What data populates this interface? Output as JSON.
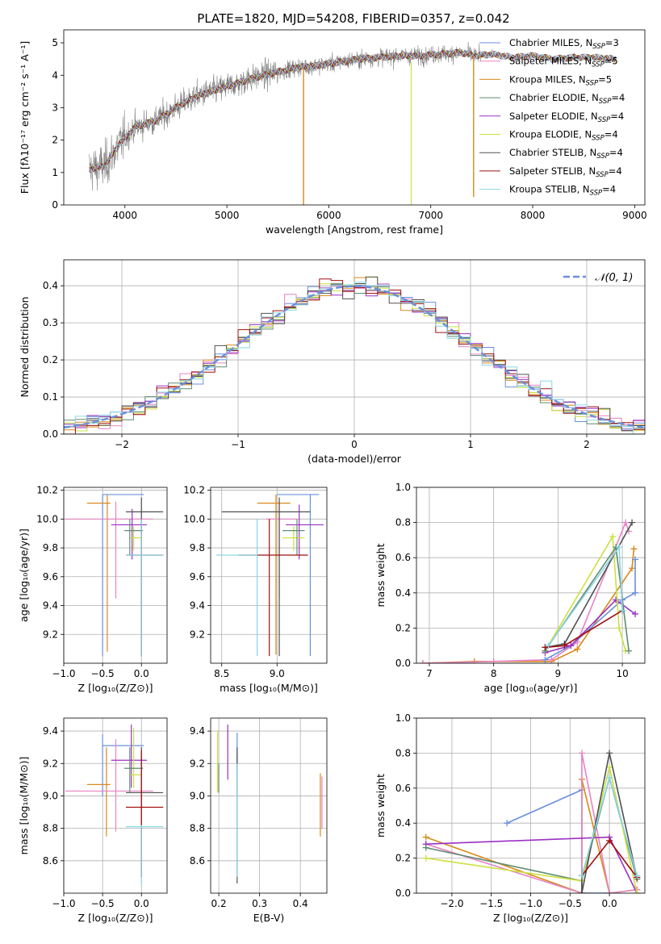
{
  "title": "PLATE=1820, MJD=54208, FIBERID=0357, z=0.042",
  "colors": {
    "Chabrier MILES": "#6a8fdc",
    "Salpeter MILES": "#e783c3",
    "Kroupa MILES": "#d88a1c",
    "Chabrier ELODIE": "#5e8c72",
    "Salpeter ELODIE": "#9a30c4",
    "Kroupa ELODIE": "#cde040",
    "Chabrier STELIB": "#505050",
    "Salpeter STELIB": "#a01010",
    "Kroupa STELIB": "#8ad6e6",
    "data": "#808080",
    "normal": "#6a8fdc"
  },
  "chart_data": [
    {
      "id": "spectrum",
      "type": "line",
      "xlabel": "wavelength [Angstrom, rest frame]",
      "ylabel": "Flux [fλ10⁻¹⁷ erg cm⁻² s⁻¹ A⁻¹]",
      "xlim": [
        3400,
        9100
      ],
      "ylim": [
        0,
        5.4
      ],
      "xticks": [
        4000,
        5000,
        6000,
        7000,
        8000,
        9000
      ],
      "yticks": [
        0,
        1,
        2,
        3,
        4,
        5
      ],
      "legend": "top-right",
      "legend_entries": [
        {
          "name": "Chabrier MILES",
          "nssp": "3"
        },
        {
          "name": "Salpeter MILES",
          "nssp": "5"
        },
        {
          "name": "Kroupa MILES",
          "nssp": "5"
        },
        {
          "name": "Chabrier ELODIE",
          "nssp": "4"
        },
        {
          "name": "Salpeter ELODIE",
          "nssp": "4"
        },
        {
          "name": "Kroupa ELODIE",
          "nssp": "4"
        },
        {
          "name": "Chabrier STELIB",
          "nssp": "4"
        },
        {
          "name": "Salpeter STELIB",
          "nssp": "4"
        },
        {
          "name": "Kroupa STELIB",
          "nssp": "4"
        }
      ],
      "continuum": [
        [
          3650,
          1.1
        ],
        [
          3800,
          1.2
        ],
        [
          3950,
          1.9
        ],
        [
          4100,
          2.4
        ],
        [
          4300,
          2.6
        ],
        [
          4500,
          3.0
        ],
        [
          4700,
          3.35
        ],
        [
          4900,
          3.55
        ],
        [
          5100,
          3.75
        ],
        [
          5300,
          3.95
        ],
        [
          5500,
          4.1
        ],
        [
          5700,
          4.25
        ],
        [
          5900,
          4.3
        ],
        [
          6100,
          4.4
        ],
        [
          6300,
          4.5
        ],
        [
          6500,
          4.55
        ],
        [
          6700,
          4.6
        ],
        [
          6900,
          4.6
        ],
        [
          7100,
          4.65
        ],
        [
          7300,
          4.7
        ],
        [
          7420,
          4.6
        ],
        [
          7600,
          4.65
        ],
        [
          7800,
          4.55
        ],
        [
          8000,
          4.6
        ],
        [
          8200,
          4.5
        ],
        [
          8400,
          4.55
        ],
        [
          8600,
          4.55
        ],
        [
          8820,
          4.5
        ]
      ]
    },
    {
      "id": "residuals",
      "type": "histogram",
      "xlabel": "(data-model)/error",
      "ylabel": "Normed distribution",
      "xlim": [
        -2.5,
        2.5
      ],
      "ylim": [
        0,
        0.47
      ],
      "xticks": [
        -2,
        -1,
        0,
        1,
        2
      ],
      "yticks": [
        0.0,
        0.1,
        0.2,
        0.3,
        0.4
      ],
      "grid": true,
      "legend": "top-right",
      "legend_label": "𝒩(0, 1)",
      "bin_width": 0.1
    },
    {
      "id": "age-vs-Z",
      "type": "errorbar",
      "xlabel": "Z [log₁₀(Z/Z⊙)]",
      "ylabel": "age  [log₁₀(age/yr)]",
      "xlim": [
        -1.0,
        0.33
      ],
      "ylim": [
        9.0,
        10.22
      ],
      "xticks": [
        -1.0,
        -0.5,
        0.0
      ],
      "yticks": [
        9.2,
        9.4,
        9.6,
        9.8,
        10.0,
        10.2
      ],
      "grid": true,
      "points": [
        {
          "s": "Chabrier MILES",
          "x": -0.5,
          "xe": [
            -0.5,
            0.03
          ],
          "y": 10.17,
          "ye": [
            9.05,
            10.17
          ]
        },
        {
          "s": "Kroupa MILES",
          "x": -0.44,
          "xe": [
            -0.7,
            -0.4
          ],
          "y": 10.11,
          "ye": [
            9.08,
            10.17
          ]
        },
        {
          "s": "Salpeter MILES",
          "x": -0.33,
          "xe": [
            -0.98,
            0.15
          ],
          "y": 10.0,
          "ye": [
            9.45,
            10.12
          ]
        },
        {
          "s": "Salpeter ELODIE",
          "x": -0.12,
          "xe": [
            -0.39,
            0.07
          ],
          "y": 9.96,
          "ye": [
            9.72,
            10.07
          ]
        },
        {
          "s": "Kroupa ELODIE",
          "x": -0.1,
          "xe": [
            -0.15,
            0.0
          ],
          "y": 9.87,
          "ye": [
            9.78,
            9.95
          ]
        },
        {
          "s": "Chabrier ELODIE",
          "x": -0.15,
          "xe": [
            -0.22,
            0.02
          ],
          "y": 9.92,
          "ye": [
            9.75,
            10.0
          ]
        },
        {
          "s": "Chabrier STELIB",
          "x": 0.0,
          "xe": [
            -0.2,
            0.28
          ],
          "y": 10.05,
          "ye": [
            9.05,
            10.15
          ]
        },
        {
          "s": "Salpeter STELIB",
          "x": 0.0,
          "xe": [
            -0.2,
            0.28
          ],
          "y": 9.75,
          "ye": [
            9.05,
            10.0
          ]
        },
        {
          "s": "Kroupa STELIB",
          "x": 0.0,
          "xe": [
            -0.2,
            0.28
          ],
          "y": 9.75,
          "ye": [
            9.05,
            10.0
          ]
        }
      ]
    },
    {
      "id": "age-vs-mass",
      "type": "errorbar",
      "xlabel": "mass [log₁₀(M/M⊙)]",
      "xlim": [
        8.4,
        9.45
      ],
      "ylim": [
        9.0,
        10.22
      ],
      "xticks": [
        8.5,
        9.0
      ],
      "yticks": [
        9.2,
        9.4,
        9.6,
        9.8,
        10.0,
        10.2
      ],
      "grid": true,
      "points": [
        {
          "s": "Chabrier MILES",
          "x": 9.3,
          "xe": [
            9.0,
            9.38
          ],
          "y": 10.17,
          "ye": [
            9.05,
            10.17
          ]
        },
        {
          "s": "Kroupa MILES",
          "x": 8.99,
          "xe": [
            8.82,
            9.12
          ],
          "y": 10.11,
          "ye": [
            9.06,
            10.17
          ]
        },
        {
          "s": "Salpeter MILES",
          "x": 9.02,
          "xe": [
            8.9,
            9.18
          ],
          "y": 10.0,
          "ye": [
            9.45,
            10.12
          ]
        },
        {
          "s": "Salpeter ELODIE",
          "x": 9.2,
          "xe": [
            9.08,
            9.42
          ],
          "y": 9.96,
          "ye": [
            9.72,
            10.1
          ]
        },
        {
          "s": "Kroupa ELODIE",
          "x": 9.15,
          "xe": [
            9.05,
            9.25
          ],
          "y": 9.87,
          "ye": [
            9.78,
            9.95
          ]
        },
        {
          "s": "Chabrier ELODIE",
          "x": 9.18,
          "xe": [
            9.05,
            9.25
          ],
          "y": 9.92,
          "ye": [
            9.75,
            10.0
          ]
        },
        {
          "s": "Chabrier STELIB",
          "x": 9.02,
          "xe": [
            8.5,
            9.3
          ],
          "y": 10.05,
          "ye": [
            9.05,
            10.15
          ]
        },
        {
          "s": "Salpeter STELIB",
          "x": 8.93,
          "xe": [
            8.65,
            9.28
          ],
          "y": 9.75,
          "ye": [
            9.05,
            10.0
          ]
        },
        {
          "s": "Kroupa STELIB",
          "x": 8.82,
          "xe": [
            8.45,
            8.82
          ],
          "y": 9.75,
          "ye": [
            9.05,
            10.0
          ]
        }
      ]
    },
    {
      "id": "mw-vs-age",
      "type": "line",
      "xlabel": "age  [log₁₀(age/yr)]",
      "ylabel": "mass weight",
      "xlim": [
        6.8,
        10.35
      ],
      "ylim": [
        0,
        1.0
      ],
      "xticks": [
        7,
        8,
        9,
        10
      ],
      "yticks": [
        0.0,
        0.2,
        0.4,
        0.6,
        0.8,
        1.0
      ],
      "grid": true,
      "series": [
        {
          "s": "Kroupa MILES",
          "x": [
            6.9,
            7.7,
            8.0,
            8.9,
            9.3,
            10.15,
            10.18
          ],
          "y": [
            0.0,
            0.01,
            0.01,
            0.01,
            0.08,
            0.54,
            0.65
          ]
        },
        {
          "s": "Salpeter MILES",
          "x": [
            6.9,
            8.0,
            8.9,
            9.3,
            10.05,
            10.1
          ],
          "y": [
            0.0,
            0.01,
            0.02,
            0.12,
            0.8,
            0.75
          ]
        },
        {
          "s": "Chabrier MILES",
          "x": [
            8.8,
            9.2,
            10.0,
            10.2,
            10.2
          ],
          "y": [
            0.02,
            0.1,
            0.36,
            0.4,
            0.59
          ]
        },
        {
          "s": "Salpeter ELODIE",
          "x": [
            8.8,
            9.2,
            9.9,
            10.2
          ],
          "y": [
            0.06,
            0.1,
            0.36,
            0.28
          ]
        },
        {
          "s": "Kroupa ELODIE",
          "x": [
            8.8,
            9.85,
            9.95,
            10.05
          ],
          "y": [
            0.07,
            0.72,
            0.2,
            0.07
          ]
        },
        {
          "s": "Chabrier ELODIE",
          "x": [
            8.8,
            9.9,
            10.1
          ],
          "y": [
            0.07,
            0.66,
            0.07
          ]
        },
        {
          "s": "Chabrier STELIB",
          "x": [
            8.8,
            9.1,
            10.15
          ],
          "y": [
            0.09,
            0.11,
            0.8
          ]
        },
        {
          "s": "Salpeter STELIB",
          "x": [
            8.8,
            9.1,
            10.0
          ],
          "y": [
            0.09,
            0.1,
            0.3
          ]
        },
        {
          "s": "Kroupa STELIB",
          "x": [
            8.85,
            9.95,
            10.0
          ],
          "y": [
            0.1,
            0.66,
            0.3
          ]
        }
      ]
    },
    {
      "id": "mass-vs-Z",
      "type": "errorbar",
      "xlabel": "Z [log₁₀(Z/Z⊙)]",
      "ylabel": "mass [log₁₀(M/M⊙)]",
      "xlim": [
        -1.0,
        0.33
      ],
      "ylim": [
        8.4,
        9.48
      ],
      "xticks": [
        -1.0,
        -0.5,
        0.0
      ],
      "yticks": [
        8.6,
        8.8,
        9.0,
        9.2,
        9.4
      ],
      "grid": true,
      "points": [
        {
          "s": "Chabrier MILES",
          "x": -0.5,
          "xe": [
            -0.5,
            0.03
          ],
          "y": 9.31,
          "ye": [
            9.0,
            9.38
          ]
        },
        {
          "s": "Kroupa MILES",
          "x": -0.45,
          "xe": [
            -0.7,
            -0.4
          ],
          "y": 9.07,
          "ye": [
            8.75,
            9.3
          ]
        },
        {
          "s": "Salpeter MILES",
          "x": -0.33,
          "xe": [
            -0.98,
            0.15
          ],
          "y": 9.03,
          "ye": [
            8.78,
            9.35
          ]
        },
        {
          "s": "Salpeter ELODIE",
          "x": -0.13,
          "xe": [
            -0.39,
            0.07
          ],
          "y": 9.22,
          "ye": [
            9.05,
            9.44
          ]
        },
        {
          "s": "Kroupa ELODIE",
          "x": -0.1,
          "xe": [
            -0.15,
            0.0
          ],
          "y": 9.13,
          "ye": [
            9.05,
            9.42
          ]
        },
        {
          "s": "Chabrier ELODIE",
          "x": -0.15,
          "xe": [
            -0.22,
            0.02
          ],
          "y": 9.17,
          "ye": [
            9.02,
            9.3
          ]
        },
        {
          "s": "Chabrier STELIB",
          "x": 0.0,
          "xe": [
            -0.2,
            0.28
          ],
          "y": 9.02,
          "ye": [
            8.5,
            9.3
          ]
        },
        {
          "s": "Salpeter STELIB",
          "x": 0.0,
          "xe": [
            -0.2,
            0.28
          ],
          "y": 8.93,
          "ye": [
            8.5,
            9.28
          ]
        },
        {
          "s": "Kroupa STELIB",
          "x": 0.0,
          "xe": [
            -0.2,
            0.28
          ],
          "y": 8.81,
          "ye": [
            8.45,
            8.82
          ]
        }
      ]
    },
    {
      "id": "mass-vs-EBV",
      "type": "errorbar",
      "xlabel": "E(B-V)",
      "xlim": [
        0.18,
        0.465
      ],
      "ylim": [
        8.4,
        9.48
      ],
      "xticks": [
        0.2,
        0.3,
        0.4
      ],
      "yticks": [
        8.6,
        8.8,
        9.0,
        9.2,
        9.4
      ],
      "grid": true,
      "points": [
        {
          "s": "Kroupa ELODIE",
          "x": 0.197,
          "ye": [
            9.02,
            9.4
          ]
        },
        {
          "s": "Chabrier ELODIE",
          "x": 0.2,
          "ye": [
            9.02,
            9.2
          ]
        },
        {
          "s": "Salpeter ELODIE",
          "x": 0.222,
          "ye": [
            9.1,
            9.44
          ]
        },
        {
          "s": "Salpeter STELIB",
          "x": 0.245,
          "ye": [
            9.15,
            9.26
          ]
        },
        {
          "s": "Chabrier MILES",
          "x": 0.245,
          "ye": [
            9.0,
            9.39
          ]
        },
        {
          "s": "Chabrier STELIB",
          "x": 0.245,
          "ye": [
            8.46,
            9.3
          ]
        },
        {
          "s": "Kroupa STELIB",
          "x": 0.245,
          "ye": [
            8.5,
            9.2
          ]
        },
        {
          "s": "Kroupa MILES",
          "x": 0.449,
          "ye": [
            8.75,
            9.14
          ]
        },
        {
          "s": "Salpeter MILES",
          "x": 0.453,
          "ye": [
            8.8,
            9.12
          ]
        }
      ]
    },
    {
      "id": "mw-vs-Z",
      "type": "line",
      "xlabel": "Z [log₁₀(Z/Z⊙)]",
      "ylabel": "mass weight",
      "xlim": [
        -2.45,
        0.45
      ],
      "ylim": [
        0,
        1.0
      ],
      "xticks": [
        -2.0,
        -1.5,
        -1.0,
        -0.5,
        0.0
      ],
      "yticks": [
        0.0,
        0.2,
        0.4,
        0.6,
        0.8,
        1.0
      ],
      "grid": true,
      "series": [
        {
          "s": "Chabrier MILES",
          "x": [
            -1.3,
            -0.35,
            -0.35,
            0.0
          ],
          "y": [
            0.4,
            0.59,
            0.0,
            0.0
          ]
        },
        {
          "s": "Kroupa MILES",
          "x": [
            -2.33,
            -0.35,
            -0.35,
            0.0,
            0.35
          ],
          "y": [
            0.32,
            0.0,
            0.65,
            0.0,
            0.02
          ]
        },
        {
          "s": "Salpeter MILES",
          "x": [
            -2.33,
            -0.35,
            -0.35,
            0.0,
            0.35
          ],
          "y": [
            0.28,
            0.0,
            0.8,
            0.0,
            0.02
          ]
        },
        {
          "s": "Salpeter ELODIE",
          "x": [
            -2.33,
            0.0,
            0.35
          ],
          "y": [
            0.28,
            0.32,
            0.0
          ]
        },
        {
          "s": "Chabrier ELODIE",
          "x": [
            -2.33,
            -0.35,
            0.0,
            0.35
          ],
          "y": [
            0.26,
            0.07,
            0.66,
            0.08
          ]
        },
        {
          "s": "Kroupa ELODIE",
          "x": [
            -2.33,
            -0.35,
            0.0,
            0.35
          ],
          "y": [
            0.2,
            0.07,
            0.72,
            0.0
          ]
        },
        {
          "s": "Chabrier STELIB",
          "x": [
            -0.35,
            -0.35,
            0.0,
            0.35
          ],
          "y": [
            0.1,
            0.0,
            0.8,
            0.09
          ]
        },
        {
          "s": "Salpeter STELIB",
          "x": [
            -0.35,
            0.0,
            0.35
          ],
          "y": [
            0.1,
            0.3,
            0.09
          ]
        },
        {
          "s": "Kroupa STELIB",
          "x": [
            -0.35,
            0.0,
            0.35
          ],
          "y": [
            0.1,
            0.66,
            0.1
          ]
        }
      ]
    }
  ]
}
